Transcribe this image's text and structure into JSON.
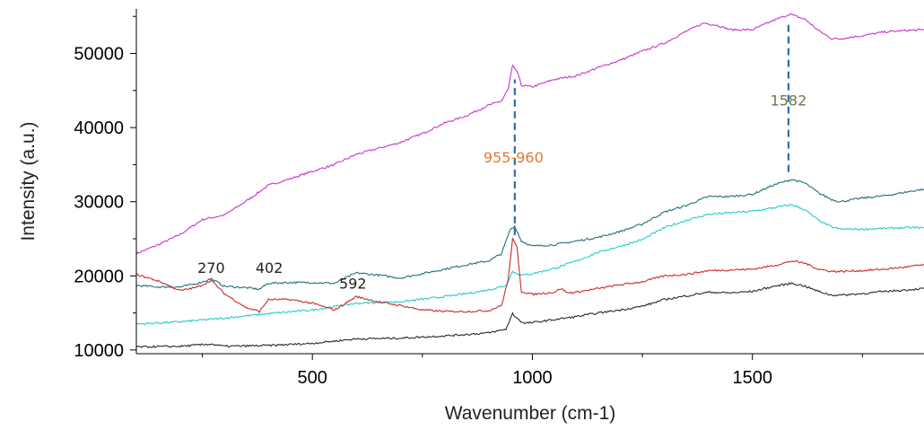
{
  "chart_data": {
    "type": "line",
    "title": "",
    "xlabel": "Wavenumber (cm-1)",
    "ylabel": "Intensity (a.u.)",
    "xlim": [
      100,
      1890
    ],
    "ylim": [
      9500,
      56000
    ],
    "x_ticks": [
      500,
      1000,
      1500
    ],
    "x_tick_labels": [
      "500",
      "1000",
      "1500"
    ],
    "y_ticks": [
      10000,
      20000,
      30000,
      40000,
      50000
    ],
    "y_tick_labels": [
      "10000",
      "20000",
      "30000",
      "40000",
      "50000"
    ],
    "grid": false,
    "legend": "none",
    "series": [
      {
        "color": "#cc33cc",
        "points": [
          [
            100,
            23000
          ],
          [
            150,
            24200
          ],
          [
            200,
            25600
          ],
          [
            250,
            27600
          ],
          [
            300,
            28200
          ],
          [
            350,
            30100
          ],
          [
            400,
            32200
          ],
          [
            450,
            33100
          ],
          [
            500,
            34100
          ],
          [
            550,
            35000
          ],
          [
            600,
            36400
          ],
          [
            650,
            37200
          ],
          [
            700,
            38000
          ],
          [
            750,
            39200
          ],
          [
            800,
            40600
          ],
          [
            850,
            41600
          ],
          [
            900,
            43000
          ],
          [
            930,
            43600
          ],
          [
            945,
            45200
          ],
          [
            955,
            48300
          ],
          [
            965,
            47600
          ],
          [
            975,
            45700
          ],
          [
            1000,
            45500
          ],
          [
            1050,
            46500
          ],
          [
            1100,
            47000
          ],
          [
            1150,
            48100
          ],
          [
            1200,
            49100
          ],
          [
            1250,
            50300
          ],
          [
            1300,
            51400
          ],
          [
            1350,
            53000
          ],
          [
            1390,
            54100
          ],
          [
            1420,
            53800
          ],
          [
            1450,
            53200
          ],
          [
            1500,
            53200
          ],
          [
            1550,
            54500
          ],
          [
            1585,
            55300
          ],
          [
            1620,
            54600
          ],
          [
            1650,
            53100
          ],
          [
            1680,
            52000
          ],
          [
            1700,
            52000
          ],
          [
            1750,
            52400
          ],
          [
            1800,
            52900
          ],
          [
            1850,
            53100
          ],
          [
            1890,
            53200
          ]
        ]
      },
      {
        "color": "#1f6f7a",
        "points": [
          [
            100,
            18700
          ],
          [
            150,
            18500
          ],
          [
            200,
            18500
          ],
          [
            240,
            19000
          ],
          [
            270,
            19600
          ],
          [
            300,
            18600
          ],
          [
            350,
            18400
          ],
          [
            380,
            18200
          ],
          [
            400,
            19000
          ],
          [
            450,
            19100
          ],
          [
            500,
            19100
          ],
          [
            550,
            19000
          ],
          [
            600,
            20400
          ],
          [
            650,
            20100
          ],
          [
            700,
            19700
          ],
          [
            750,
            20300
          ],
          [
            800,
            20900
          ],
          [
            850,
            21500
          ],
          [
            900,
            22000
          ],
          [
            930,
            23000
          ],
          [
            950,
            26300
          ],
          [
            960,
            26700
          ],
          [
            975,
            24700
          ],
          [
            1000,
            24000
          ],
          [
            1050,
            24200
          ],
          [
            1100,
            24700
          ],
          [
            1150,
            25200
          ],
          [
            1200,
            26000
          ],
          [
            1250,
            27000
          ],
          [
            1300,
            28600
          ],
          [
            1350,
            29500
          ],
          [
            1400,
            30700
          ],
          [
            1450,
            30700
          ],
          [
            1500,
            31000
          ],
          [
            1550,
            32300
          ],
          [
            1590,
            33000
          ],
          [
            1620,
            32500
          ],
          [
            1650,
            31200
          ],
          [
            1680,
            30300
          ],
          [
            1700,
            30000
          ],
          [
            1750,
            30500
          ],
          [
            1800,
            30800
          ],
          [
            1850,
            31300
          ],
          [
            1890,
            31700
          ]
        ]
      },
      {
        "color": "#22cccc",
        "points": [
          [
            100,
            13500
          ],
          [
            200,
            13800
          ],
          [
            300,
            14300
          ],
          [
            400,
            14900
          ],
          [
            500,
            15400
          ],
          [
            600,
            16300
          ],
          [
            700,
            16500
          ],
          [
            800,
            17200
          ],
          [
            850,
            17600
          ],
          [
            900,
            18100
          ],
          [
            940,
            18700
          ],
          [
            955,
            20600
          ],
          [
            965,
            20300
          ],
          [
            980,
            20100
          ],
          [
            1000,
            20300
          ],
          [
            1050,
            21000
          ],
          [
            1100,
            22000
          ],
          [
            1150,
            23200
          ],
          [
            1200,
            24000
          ],
          [
            1250,
            24900
          ],
          [
            1300,
            26500
          ],
          [
            1350,
            27500
          ],
          [
            1400,
            28300
          ],
          [
            1450,
            28500
          ],
          [
            1500,
            28700
          ],
          [
            1550,
            29200
          ],
          [
            1590,
            29600
          ],
          [
            1620,
            28900
          ],
          [
            1650,
            27500
          ],
          [
            1680,
            26600
          ],
          [
            1700,
            26300
          ],
          [
            1750,
            26300
          ],
          [
            1800,
            26400
          ],
          [
            1850,
            26500
          ],
          [
            1890,
            26500
          ]
        ]
      },
      {
        "color": "#cc2a2a",
        "points": [
          [
            100,
            20200
          ],
          [
            150,
            19300
          ],
          [
            200,
            18000
          ],
          [
            240,
            18500
          ],
          [
            270,
            19400
          ],
          [
            300,
            17600
          ],
          [
            350,
            15700
          ],
          [
            380,
            15200
          ],
          [
            400,
            16800
          ],
          [
            450,
            16800
          ],
          [
            500,
            16300
          ],
          [
            550,
            15400
          ],
          [
            600,
            17200
          ],
          [
            650,
            16500
          ],
          [
            700,
            16000
          ],
          [
            750,
            15400
          ],
          [
            800,
            15200
          ],
          [
            850,
            15200
          ],
          [
            900,
            15300
          ],
          [
            930,
            16000
          ],
          [
            945,
            19500
          ],
          [
            955,
            25000
          ],
          [
            965,
            23800
          ],
          [
            975,
            17900
          ],
          [
            1000,
            17500
          ],
          [
            1050,
            17800
          ],
          [
            1065,
            18300
          ],
          [
            1080,
            17700
          ],
          [
            1100,
            17800
          ],
          [
            1150,
            18300
          ],
          [
            1200,
            18800
          ],
          [
            1250,
            19200
          ],
          [
            1300,
            20000
          ],
          [
            1350,
            20200
          ],
          [
            1400,
            20700
          ],
          [
            1450,
            20800
          ],
          [
            1500,
            20900
          ],
          [
            1550,
            21400
          ],
          [
            1590,
            22000
          ],
          [
            1620,
            21700
          ],
          [
            1650,
            20900
          ],
          [
            1680,
            20600
          ],
          [
            1700,
            20600
          ],
          [
            1750,
            20700
          ],
          [
            1800,
            20900
          ],
          [
            1850,
            21200
          ],
          [
            1890,
            21500
          ]
        ]
      },
      {
        "color": "#2a2a2a",
        "points": [
          [
            100,
            10400
          ],
          [
            200,
            10500
          ],
          [
            270,
            10800
          ],
          [
            300,
            10500
          ],
          [
            400,
            10600
          ],
          [
            500,
            10900
          ],
          [
            600,
            11500
          ],
          [
            700,
            11600
          ],
          [
            800,
            11900
          ],
          [
            900,
            12300
          ],
          [
            940,
            12800
          ],
          [
            955,
            14900
          ],
          [
            965,
            14300
          ],
          [
            980,
            13600
          ],
          [
            1000,
            13700
          ],
          [
            1050,
            14100
          ],
          [
            1100,
            14500
          ],
          [
            1150,
            15000
          ],
          [
            1200,
            15400
          ],
          [
            1250,
            15900
          ],
          [
            1300,
            16800
          ],
          [
            1350,
            17300
          ],
          [
            1400,
            17800
          ],
          [
            1450,
            17700
          ],
          [
            1500,
            17900
          ],
          [
            1550,
            18600
          ],
          [
            1590,
            19000
          ],
          [
            1620,
            18600
          ],
          [
            1650,
            17900
          ],
          [
            1680,
            17400
          ],
          [
            1700,
            17400
          ],
          [
            1750,
            17600
          ],
          [
            1800,
            17900
          ],
          [
            1850,
            18100
          ],
          [
            1890,
            18300
          ]
        ]
      }
    ],
    "guide_lines": [
      {
        "x": 960,
        "y_from": 25500,
        "y_to": 46500,
        "color": "#2e6fa8"
      },
      {
        "x": 1582,
        "y_from": 34000,
        "y_to": 54000,
        "color": "#2e6fa8"
      }
    ],
    "annotations": [
      {
        "text": "270",
        "x": 270,
        "y": 20400,
        "color": "#222222"
      },
      {
        "text": "402",
        "x": 402,
        "y": 20400,
        "color": "#222222"
      },
      {
        "text": "592",
        "x": 592,
        "y": 18300,
        "color": "#222222"
      },
      {
        "text": "955-960",
        "x": 957,
        "y": 35300,
        "color": "#e8762d"
      },
      {
        "text": "1582",
        "x": 1582,
        "y": 43000,
        "color": "#6b7a4a"
      }
    ]
  }
}
